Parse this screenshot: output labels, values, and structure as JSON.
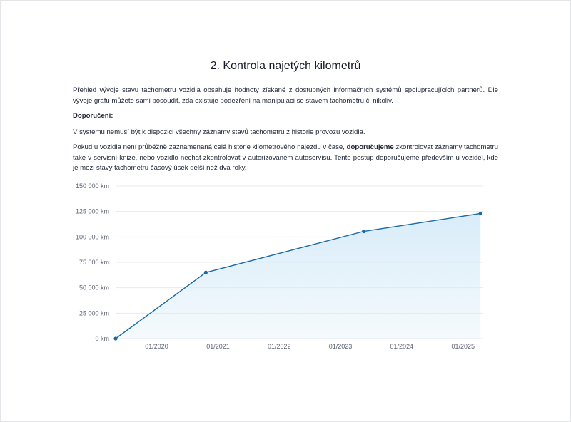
{
  "section": {
    "title": "2. Kontrola najetých kilometrů",
    "intro": "Přehled vývoje stavu tachometru vozidla obsahuje hodnoty získané z dostupných informačních systémů spolupracujících partnerů. Dle vývoje grafu můžete sami posoudit, zda existuje podezření na manipulaci se stavem tachometru či nikoliv.",
    "recommendation_heading": "Doporučení:",
    "note": "V systému nemusí být k dispozici všechny záznamy stavů tachometru z historie provozu vozidla.",
    "advice_start": "Pokud u vozidla není průběžně zaznamenaná celá historie kilometrového nájezdu v čase, ",
    "advice_bold": "doporučujeme",
    "advice_end": " zkontrolovat záznamy tachometru také v servisní knize, nebo vozidlo nechat zkontrolovat v autorizovaném autoservisu. Tento postup doporučujeme především u vozidel, kde je mezi stavy tachometru časový úsek delší než dva roky."
  },
  "colors": {
    "line": "#1a6aa8",
    "fill": "#d6ebf8",
    "grid": "#e8ebef"
  },
  "chart_data": {
    "type": "area",
    "x_axis_type": "date",
    "xlim": [
      "2019-05-01",
      "2025-05-01"
    ],
    "ylim": [
      0,
      150000
    ],
    "y_ticks": [
      0,
      25000,
      50000,
      75000,
      100000,
      125000,
      150000
    ],
    "y_tick_labels": [
      "0 km",
      "25 000 km",
      "50 000 km",
      "75 000 km",
      "100 000 km",
      "125 000 km",
      "150 000 km"
    ],
    "x_ticks": [
      "2020-01-01",
      "2021-01-01",
      "2022-01-01",
      "2023-01-01",
      "2024-01-01",
      "2025-01-01"
    ],
    "x_tick_labels": [
      "01/2020",
      "01/2021",
      "01/2022",
      "01/2023",
      "01/2024",
      "01/2025"
    ],
    "grid": true,
    "series": [
      {
        "points": [
          {
            "x": "2019-05-01",
            "y": 0
          },
          {
            "x": "2020-10-20",
            "y": 65000
          },
          {
            "x": "2023-05-20",
            "y": 105500
          },
          {
            "x": "2025-04-15",
            "y": 123000
          }
        ]
      }
    ]
  }
}
